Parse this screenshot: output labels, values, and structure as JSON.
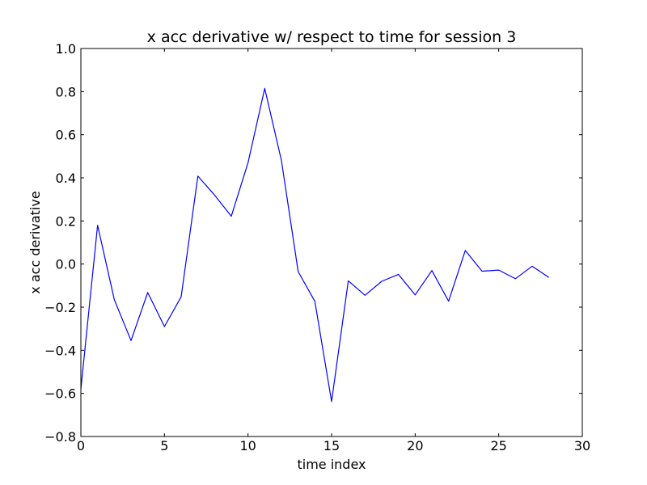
{
  "chart_data": {
    "type": "line",
    "title": "x acc derivative w/ respect to time for session 3",
    "xlabel": "time index",
    "ylabel": "x acc derivative",
    "xlim": [
      0,
      30
    ],
    "ylim": [
      -0.8,
      1.0
    ],
    "xticks": [
      0,
      5,
      10,
      15,
      20,
      25,
      30
    ],
    "yticks": [
      -0.8,
      -0.6,
      -0.4,
      -0.2,
      0.0,
      0.2,
      0.4,
      0.6,
      0.8,
      1.0
    ],
    "xtick_labels": [
      "0",
      "5",
      "10",
      "15",
      "20",
      "25",
      "30"
    ],
    "ytick_labels": [
      "−0.8",
      "−0.6",
      "−0.4",
      "−0.2",
      "0.0",
      "0.2",
      "0.4",
      "0.6",
      "0.8",
      "1.0"
    ],
    "grid": false,
    "line_color": "#0000ff",
    "series": [
      {
        "x": [
          0,
          1,
          2,
          3,
          4,
          5,
          6,
          7,
          8,
          9,
          10,
          11,
          12,
          13,
          14,
          15,
          16,
          17,
          18,
          19,
          20,
          21,
          22,
          23,
          24,
          25,
          26,
          27,
          28
        ],
        "values": [
          -0.58,
          0.18,
          -0.165,
          -0.355,
          -0.132,
          -0.29,
          -0.152,
          0.408,
          0.32,
          0.222,
          0.47,
          0.815,
          0.48,
          -0.035,
          -0.173,
          -0.638,
          -0.078,
          -0.145,
          -0.08,
          -0.048,
          -0.143,
          -0.03,
          -0.172,
          0.063,
          -0.033,
          -0.028,
          -0.068,
          -0.01,
          -0.062
        ]
      }
    ]
  }
}
